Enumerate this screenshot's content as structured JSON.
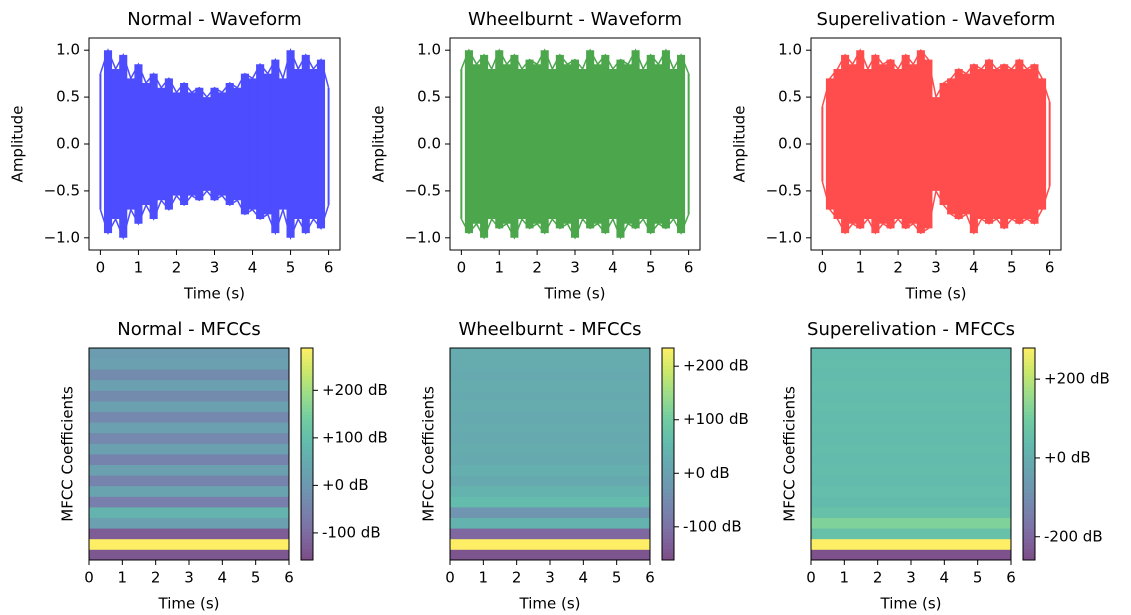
{
  "chart_data": [
    {
      "type": "waveform",
      "title": "Normal - Waveform",
      "x_label": "Time (s)",
      "y_label": "Amplitude",
      "color": "#4d4dff",
      "x": [
        0,
        0.2,
        0.4,
        0.6,
        0.8,
        1,
        1.2,
        1.4,
        1.6,
        1.8,
        2,
        2.2,
        2.4,
        2.6,
        2.8,
        3,
        3.2,
        3.4,
        3.6,
        3.8,
        4,
        4.2,
        4.4,
        4.6,
        4.8,
        5,
        5.2,
        5.4,
        5.6,
        5.8,
        6
      ],
      "upper": [
        0.75,
        1.0,
        0.8,
        0.95,
        0.7,
        0.85,
        0.65,
        0.75,
        0.6,
        0.7,
        0.55,
        0.65,
        0.55,
        0.6,
        0.5,
        0.6,
        0.55,
        0.65,
        0.6,
        0.75,
        0.7,
        0.85,
        0.75,
        0.9,
        0.7,
        1.0,
        0.8,
        0.95,
        0.8,
        0.9,
        0.6
      ],
      "lower": [
        -0.7,
        -0.95,
        -0.8,
        -1.0,
        -0.7,
        -0.85,
        -0.65,
        -0.8,
        -0.6,
        -0.7,
        -0.55,
        -0.65,
        -0.55,
        -0.6,
        -0.5,
        -0.6,
        -0.55,
        -0.65,
        -0.6,
        -0.75,
        -0.7,
        -0.8,
        -0.75,
        -0.95,
        -0.7,
        -1.0,
        -0.8,
        -0.95,
        -0.8,
        -0.9,
        -0.65
      ],
      "xlim": [
        -0.3,
        6.3
      ],
      "xticks": [
        0,
        1,
        2,
        3,
        4,
        5,
        6
      ],
      "ylim": [
        -1.13,
        1.13
      ],
      "yticks": [
        {
          "value": -1.0,
          "label": "−1.0"
        },
        {
          "value": -0.5,
          "label": "−0.5"
        },
        {
          "value": 0.0,
          "label": "0.0"
        },
        {
          "value": 0.5,
          "label": "0.5"
        },
        {
          "value": 1.0,
          "label": "1.0"
        }
      ]
    },
    {
      "type": "waveform",
      "title": "Wheelburnt - Waveform",
      "x_label": "Time (s)",
      "y_label": "Amplitude",
      "color": "#4ca64c",
      "x": [
        0,
        0.2,
        0.4,
        0.6,
        0.8,
        1,
        1.2,
        1.4,
        1.6,
        1.8,
        2,
        2.2,
        2.4,
        2.6,
        2.8,
        3,
        3.2,
        3.4,
        3.6,
        3.8,
        4,
        4.2,
        4.4,
        4.6,
        4.8,
        5,
        5.2,
        5.4,
        5.6,
        5.8,
        6
      ],
      "upper": [
        0.8,
        1.0,
        0.85,
        0.95,
        0.8,
        1.0,
        0.85,
        0.95,
        0.8,
        0.9,
        0.85,
        1.0,
        0.8,
        0.95,
        0.85,
        0.9,
        0.8,
        1.0,
        0.85,
        0.95,
        0.8,
        0.9,
        0.85,
        1.0,
        0.8,
        0.95,
        0.85,
        1.0,
        0.8,
        0.95,
        0.75
      ],
      "lower": [
        -0.8,
        -0.95,
        -0.85,
        -1.0,
        -0.8,
        -0.9,
        -0.85,
        -1.0,
        -0.8,
        -0.9,
        -0.85,
        -0.95,
        -0.8,
        -0.9,
        -0.85,
        -1.0,
        -0.8,
        -0.9,
        -0.85,
        -0.95,
        -0.8,
        -1.0,
        -0.85,
        -0.9,
        -0.8,
        -0.95,
        -0.85,
        -0.9,
        -0.8,
        -0.95,
        -0.75
      ],
      "xlim": [
        -0.3,
        6.3
      ],
      "xticks": [
        0,
        1,
        2,
        3,
        4,
        5,
        6
      ],
      "ylim": [
        -1.13,
        1.13
      ],
      "yticks": [
        {
          "value": -1.0,
          "label": "−1.0"
        },
        {
          "value": -0.5,
          "label": "−0.5"
        },
        {
          "value": 0.0,
          "label": "0.0"
        },
        {
          "value": 0.5,
          "label": "0.5"
        },
        {
          "value": 1.0,
          "label": "1.0"
        }
      ]
    },
    {
      "type": "waveform",
      "title": "Superelivation - Waveform",
      "x_label": "Time (s)",
      "y_label": "Amplitude",
      "color": "#ff4d4d",
      "x": [
        0,
        0.2,
        0.4,
        0.6,
        0.8,
        1,
        1.2,
        1.4,
        1.6,
        1.8,
        2,
        2.2,
        2.4,
        2.6,
        2.8,
        3,
        3.2,
        3.4,
        3.6,
        3.8,
        4,
        4.2,
        4.4,
        4.6,
        4.8,
        5,
        5.2,
        5.4,
        5.6,
        5.8,
        6
      ],
      "upper": [
        0.4,
        0.7,
        0.8,
        0.95,
        0.85,
        1.0,
        0.8,
        0.95,
        0.85,
        0.9,
        0.8,
        0.95,
        0.85,
        1.0,
        0.9,
        0.5,
        0.65,
        0.7,
        0.8,
        0.75,
        0.85,
        0.8,
        0.9,
        0.8,
        0.85,
        0.8,
        0.9,
        0.8,
        0.85,
        0.7,
        0.45
      ],
      "lower": [
        -0.4,
        -0.7,
        -0.8,
        -0.95,
        -0.85,
        -0.9,
        -0.8,
        -0.95,
        -0.85,
        -0.9,
        -0.8,
        -0.9,
        -0.85,
        -0.95,
        -0.9,
        -0.5,
        -0.65,
        -0.75,
        -0.8,
        -0.75,
        -0.95,
        -0.8,
        -0.85,
        -0.8,
        -0.9,
        -0.8,
        -0.85,
        -0.8,
        -0.85,
        -0.7,
        -0.45
      ],
      "xlim": [
        -0.3,
        6.3
      ],
      "xticks": [
        0,
        1,
        2,
        3,
        4,
        5,
        6
      ],
      "ylim": [
        -1.13,
        1.13
      ],
      "yticks": [
        {
          "value": -1.0,
          "label": "−1.0"
        },
        {
          "value": -0.5,
          "label": "−0.5"
        },
        {
          "value": 0.0,
          "label": "0.0"
        },
        {
          "value": 0.5,
          "label": "0.5"
        },
        {
          "value": 1.0,
          "label": "1.0"
        }
      ]
    },
    {
      "type": "heatmap",
      "title": "Normal - MFCCs",
      "x_label": "Time (s)",
      "y_label": "MFCC Coefficients",
      "colormap": "viridis",
      "values": [
        -140,
        289,
        -130,
        20,
        70,
        -60,
        30,
        -50,
        20,
        -50,
        20,
        -40,
        20,
        -40,
        20,
        -30,
        20,
        -30,
        20,
        10
      ],
      "xlim": [
        0,
        6
      ],
      "xticks": [
        0,
        1,
        2,
        3,
        4,
        5,
        6
      ],
      "zlim": [
        -157,
        289
      ],
      "zticks": [
        {
          "value": -100,
          "label": "-100 dB"
        },
        {
          "value": 0,
          "label": "+0 dB"
        },
        {
          "value": 100,
          "label": "+100 dB"
        },
        {
          "value": 200,
          "label": "+200 dB"
        }
      ]
    },
    {
      "type": "heatmap",
      "title": "Wheelburnt - MFCCs",
      "x_label": "Time (s)",
      "y_label": "MFCC Coefficients",
      "colormap": "viridis",
      "values": [
        -150,
        234,
        -120,
        40,
        -30,
        60,
        40,
        20,
        30,
        20,
        25,
        20,
        25,
        20,
        25,
        20,
        25,
        20,
        25,
        25
      ],
      "xlim": [
        0,
        6
      ],
      "xticks": [
        0,
        1,
        2,
        3,
        4,
        5,
        6
      ],
      "zlim": [
        -162,
        234
      ],
      "zticks": [
        {
          "value": -100,
          "label": "-100 dB"
        },
        {
          "value": 0,
          "label": "+0 dB"
        },
        {
          "value": 100,
          "label": "+100 dB"
        },
        {
          "value": 200,
          "label": "+200 dB"
        }
      ]
    },
    {
      "type": "heatmap",
      "title": "Superelivation - MFCCs",
      "x_label": "Time (s)",
      "y_label": "MFCC Coefficients",
      "colormap": "viridis",
      "values": [
        -250,
        279,
        60,
        120,
        60,
        40,
        50,
        40,
        45,
        40,
        45,
        40,
        45,
        40,
        45,
        40,
        45,
        40,
        45,
        40
      ],
      "xlim": [
        0,
        6
      ],
      "xticks": [
        0,
        1,
        2,
        3,
        4,
        5,
        6
      ],
      "zlim": [
        -259,
        279
      ],
      "zticks": [
        {
          "value": -200,
          "label": "-200 dB"
        },
        {
          "value": 0,
          "label": "+0 dB"
        },
        {
          "value": 200,
          "label": "+200 dB"
        }
      ]
    }
  ]
}
